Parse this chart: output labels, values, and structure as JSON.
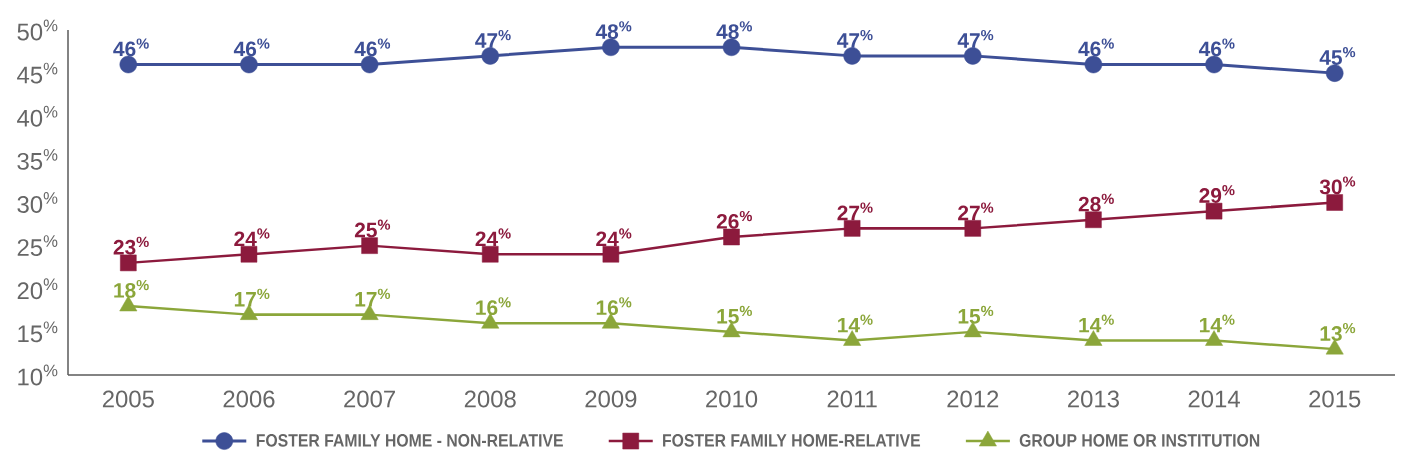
{
  "chart_data": {
    "type": "line",
    "categories": [
      "2005",
      "2006",
      "2007",
      "2008",
      "2009",
      "2010",
      "2011",
      "2012",
      "2013",
      "2014",
      "2015"
    ],
    "series": [
      {
        "name": "FOSTER FAMILY HOME - NON-RELATIVE",
        "color": "#3d4f96",
        "marker": "circle",
        "values": [
          46,
          46,
          46,
          47,
          48,
          48,
          47,
          47,
          46,
          46,
          45
        ],
        "value_labels": [
          "46$^{%}$",
          "46$^{%}$",
          "46$^{%}$",
          "47$^{%}$",
          "48$^{%}$",
          "48$^{%}$",
          "47$^{%}$",
          "47$^{%}$",
          "46$^{%}$",
          "46$^{%}$",
          "45$^{%}$"
        ]
      },
      {
        "name": "FOSTER FAMILY HOME-RELATIVE",
        "color": "#8c1a3d",
        "marker": "square",
        "values": [
          23,
          24,
          25,
          24,
          24,
          26,
          27,
          27,
          28,
          29,
          30
        ],
        "value_labels": [
          "23$^{%}$",
          "24$^{%}$",
          "25$^{%}$",
          "24$^{%}$",
          "24$^{%}$",
          "26$^{%}$",
          "27$^{%}$",
          "27$^{%}$",
          "28$^{%}$",
          "29$^{%}$",
          "30$^{%}$"
        ]
      },
      {
        "name": "GROUP HOME OR INSTITUTION",
        "color": "#8ba63a",
        "marker": "triangle",
        "values": [
          18,
          17,
          17,
          16,
          16,
          15,
          14,
          15,
          14,
          14,
          13
        ],
        "value_labels": [
          "18$^{%}$",
          "17$^{%}$",
          "17$^{%}$",
          "16$^{%}$",
          "16$^{%}$",
          "15$^{%}$",
          "14$^{%}$",
          "15$^{%}$",
          "14$^{%}$",
          "14$^{%}$",
          "13$^{%}$"
        ]
      }
    ],
    "ylim": [
      10,
      50
    ],
    "yticks": [
      {
        "value": 10,
        "label": "10$^{%}$"
      },
      {
        "value": 15,
        "label": "15$^{%}$"
      },
      {
        "value": 20,
        "label": "20$^{%}$"
      },
      {
        "value": 25,
        "label": "25$^{%}$"
      },
      {
        "value": 30,
        "label": "30$^{%}$"
      },
      {
        "value": 35,
        "label": "35$^{%}$"
      },
      {
        "value": 40,
        "label": "40$^{%}$"
      },
      {
        "value": 45,
        "label": "45$^{%}$"
      },
      {
        "value": 50,
        "label": "50$^{%}$"
      }
    ],
    "legend": "bottom"
  }
}
